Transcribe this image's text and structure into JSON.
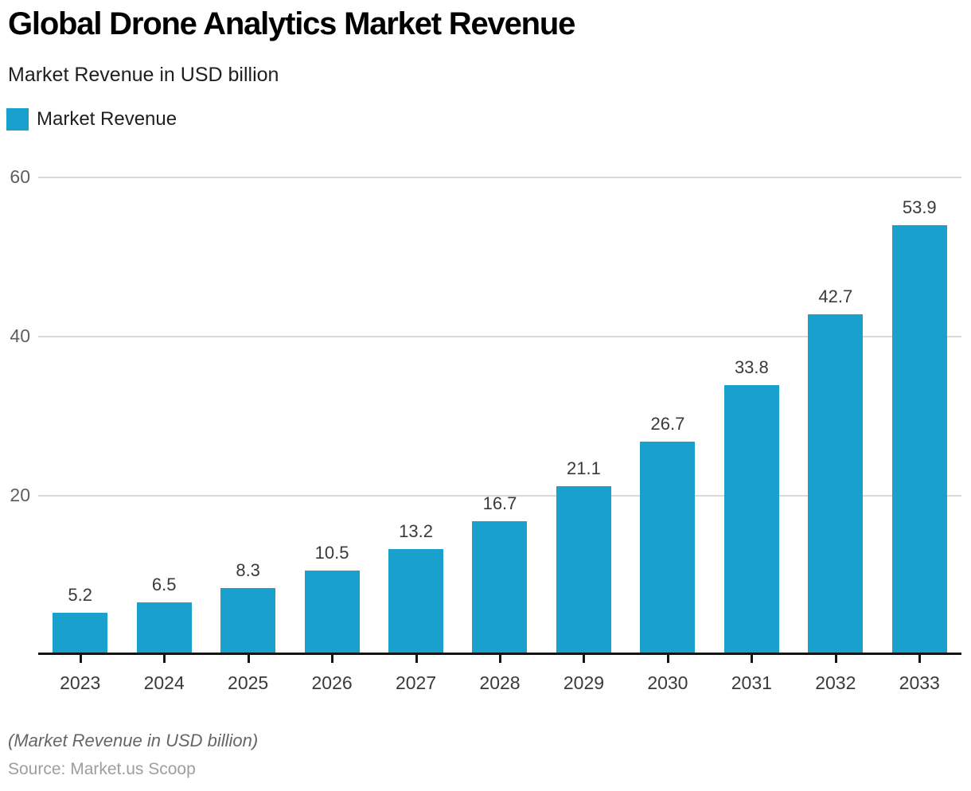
{
  "header": {
    "title": "Global Drone Analytics Market Revenue",
    "subtitle": "Market Revenue in USD billion"
  },
  "legend": {
    "label": "Market Revenue",
    "swatch_color": "#19A0CD"
  },
  "chart_data": {
    "type": "bar",
    "title": "Global Drone Analytics Market Revenue",
    "subtitle": "Market Revenue in USD billion",
    "series_name": "Market Revenue",
    "categories": [
      "2023",
      "2024",
      "2025",
      "2026",
      "2027",
      "2028",
      "2029",
      "2030",
      "2031",
      "2032",
      "2033"
    ],
    "values": [
      5.2,
      6.5,
      8.3,
      10.5,
      13.2,
      16.7,
      21.1,
      26.7,
      33.8,
      42.7,
      53.9
    ],
    "xlabel": "",
    "ylabel": "Market Revenue in USD billion",
    "ylim": [
      0,
      60
    ],
    "yticks": [
      20,
      40,
      60
    ],
    "grid": true,
    "legend_position": "top-left",
    "bar_color": "#19A0CD",
    "gridline_color": "#d9d9d9",
    "value_labels": true
  },
  "footer": {
    "note": "(Market Revenue in USD billion)",
    "source": "Source: Market.us Scoop"
  }
}
